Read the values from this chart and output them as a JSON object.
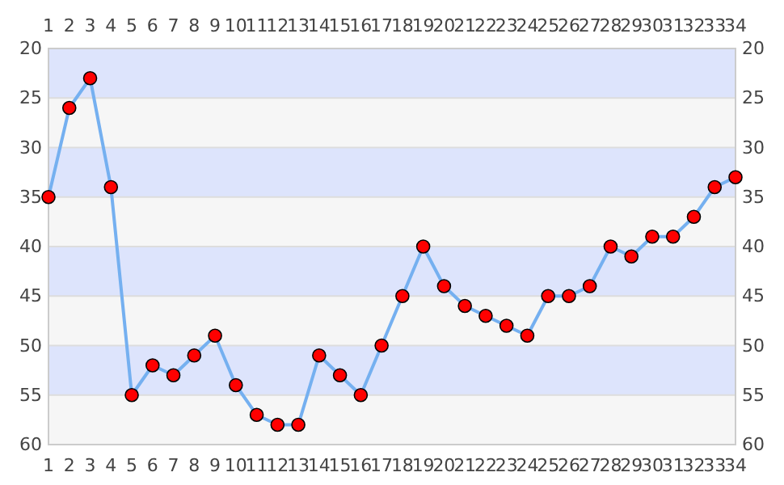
{
  "chart_data": {
    "type": "line",
    "x": [
      1,
      2,
      3,
      4,
      5,
      6,
      7,
      8,
      9,
      10,
      11,
      12,
      13,
      14,
      15,
      16,
      17,
      18,
      19,
      20,
      21,
      22,
      23,
      24,
      25,
      26,
      27,
      28,
      29,
      30,
      31,
      32,
      33,
      34
    ],
    "series": [
      {
        "color": "#75b0f0",
        "values": [
          35,
          26,
          23,
          34,
          55,
          52,
          53,
          51,
          49,
          54,
          57,
          58,
          58,
          51,
          53,
          55,
          50,
          45,
          40,
          44,
          46,
          47,
          48,
          49,
          45,
          45,
          44,
          40,
          41,
          39,
          39,
          37,
          34,
          33
        ]
      }
    ],
    "xlim": [
      1,
      34
    ],
    "xticks": [
      1,
      2,
      3,
      4,
      5,
      6,
      7,
      8,
      9,
      10,
      11,
      12,
      13,
      14,
      15,
      16,
      17,
      18,
      19,
      20,
      21,
      22,
      23,
      24,
      25,
      26,
      27,
      28,
      29,
      30,
      31,
      32,
      33,
      34
    ],
    "x2lim": [
      1,
      34
    ],
    "x2ticks": [
      1,
      2,
      3,
      4,
      5,
      6,
      7,
      8,
      9,
      10,
      11,
      12,
      13,
      14,
      15,
      16,
      17,
      18,
      19,
      20,
      21,
      22,
      23,
      24,
      25,
      26,
      27,
      28,
      29,
      30,
      31,
      32,
      33,
      34
    ],
    "ylim": [
      60,
      20
    ],
    "yticks": [
      20,
      25,
      30,
      35,
      40,
      45,
      50,
      55,
      60
    ],
    "y2lim": [
      60,
      20
    ],
    "y2ticks": [
      20,
      25,
      30,
      35,
      40,
      45,
      50,
      55,
      60
    ],
    "bands": [
      {
        "axis": "y",
        "from": 20,
        "to": 25,
        "color": "#dde4fc"
      },
      {
        "axis": "y",
        "from": 30,
        "to": 35,
        "color": "#dde4fc"
      },
      {
        "axis": "y",
        "from": 40,
        "to": 45,
        "color": "#dde4fc"
      },
      {
        "axis": "y",
        "from": 50,
        "to": 55,
        "color": "#dde4fc"
      }
    ],
    "grid": "y",
    "marker": "circle",
    "line_style": "solid"
  }
}
